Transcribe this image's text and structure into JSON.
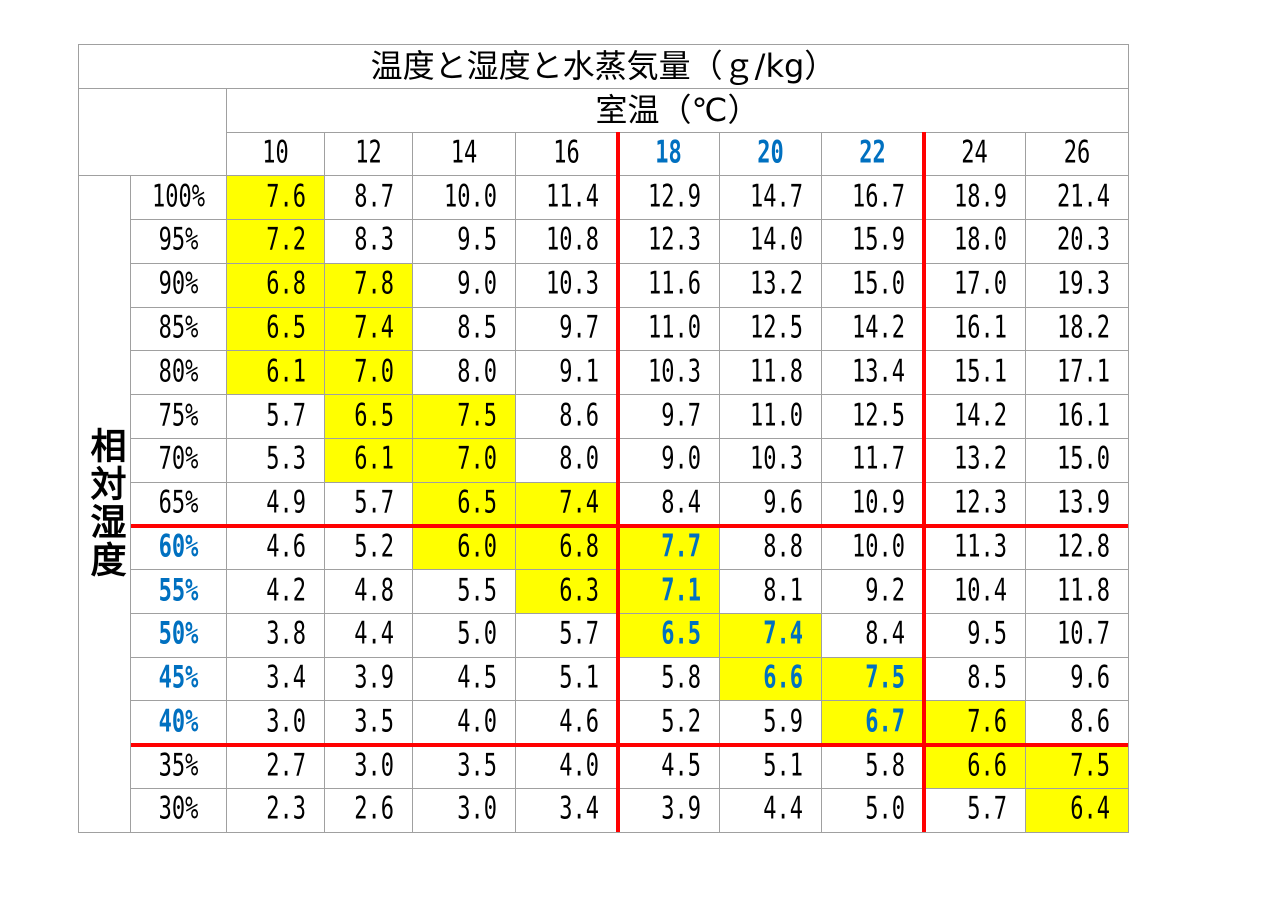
{
  "colors": {
    "highlight_fill": "#FFFF00",
    "emphasis_text": "#0070C0",
    "divider": "#FF0000",
    "grid": "#A0A0A0",
    "text": "#000000"
  },
  "chart_data": {
    "type": "table",
    "title": "温度と湿度と水蒸気量（ｇ/kg）",
    "xlabel": "室温（℃）",
    "ylabel": "相対湿度",
    "columns": [
      10,
      12,
      14,
      16,
      18,
      20,
      22,
      24,
      26
    ],
    "emphasized_columns": [
      18,
      20,
      22
    ],
    "emphasized_rows": [
      "60%",
      "55%",
      "50%",
      "45%",
      "40%"
    ],
    "rows": [
      {
        "label": "100%",
        "values": [
          7.6,
          8.7,
          10.0,
          11.4,
          12.9,
          14.7,
          16.7,
          18.9,
          21.4
        ],
        "highlighted": [
          10
        ]
      },
      {
        "label": "95%",
        "values": [
          7.2,
          8.3,
          9.5,
          10.8,
          12.3,
          14.0,
          15.9,
          18.0,
          20.3
        ],
        "highlighted": [
          10
        ]
      },
      {
        "label": "90%",
        "values": [
          6.8,
          7.8,
          9.0,
          10.3,
          11.6,
          13.2,
          15.0,
          17.0,
          19.3
        ],
        "highlighted": [
          10,
          12
        ]
      },
      {
        "label": "85%",
        "values": [
          6.5,
          7.4,
          8.5,
          9.7,
          11.0,
          12.5,
          14.2,
          16.1,
          18.2
        ],
        "highlighted": [
          10,
          12
        ]
      },
      {
        "label": "80%",
        "values": [
          6.1,
          7.0,
          8.0,
          9.1,
          10.3,
          11.8,
          13.4,
          15.1,
          17.1
        ],
        "highlighted": [
          10,
          12
        ]
      },
      {
        "label": "75%",
        "values": [
          5.7,
          6.5,
          7.5,
          8.6,
          9.7,
          11.0,
          12.5,
          14.2,
          16.1
        ],
        "highlighted": [
          12,
          14
        ]
      },
      {
        "label": "70%",
        "values": [
          5.3,
          6.1,
          7.0,
          8.0,
          9.0,
          10.3,
          11.7,
          13.2,
          15.0
        ],
        "highlighted": [
          12,
          14
        ]
      },
      {
        "label": "65%",
        "values": [
          4.9,
          5.7,
          6.5,
          7.4,
          8.4,
          9.6,
          10.9,
          12.3,
          13.9
        ],
        "highlighted": [
          14,
          16
        ]
      },
      {
        "label": "60%",
        "values": [
          4.6,
          5.2,
          6.0,
          6.8,
          7.7,
          8.8,
          10.0,
          11.3,
          12.8
        ],
        "highlighted": [
          14,
          16,
          18
        ]
      },
      {
        "label": "55%",
        "values": [
          4.2,
          4.8,
          5.5,
          6.3,
          7.1,
          8.1,
          9.2,
          10.4,
          11.8
        ],
        "highlighted": [
          16,
          18
        ]
      },
      {
        "label": "50%",
        "values": [
          3.8,
          4.4,
          5.0,
          5.7,
          6.5,
          7.4,
          8.4,
          9.5,
          10.7
        ],
        "highlighted": [
          18,
          20
        ]
      },
      {
        "label": "45%",
        "values": [
          3.4,
          3.9,
          4.5,
          5.1,
          5.8,
          6.6,
          7.5,
          8.5,
          9.6
        ],
        "highlighted": [
          20,
          22
        ]
      },
      {
        "label": "40%",
        "values": [
          3.0,
          3.5,
          4.0,
          4.6,
          5.2,
          5.9,
          6.7,
          7.6,
          8.6
        ],
        "highlighted": [
          22,
          24
        ]
      },
      {
        "label": "35%",
        "values": [
          2.7,
          3.0,
          3.5,
          4.0,
          4.5,
          5.1,
          5.8,
          6.6,
          7.5
        ],
        "highlighted": [
          24,
          26
        ]
      },
      {
        "label": "30%",
        "values": [
          2.3,
          2.6,
          3.0,
          3.4,
          3.9,
          4.4,
          5.0,
          5.7,
          6.4
        ],
        "highlighted": [
          26
        ]
      }
    ]
  }
}
